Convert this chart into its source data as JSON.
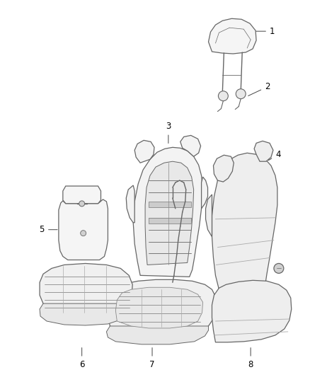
{
  "bg_color": "#ffffff",
  "line_color": "#666666",
  "label_color": "#000000",
  "label_fontsize": 8.5,
  "fig_width": 4.38,
  "fig_height": 5.33,
  "dpi": 100
}
